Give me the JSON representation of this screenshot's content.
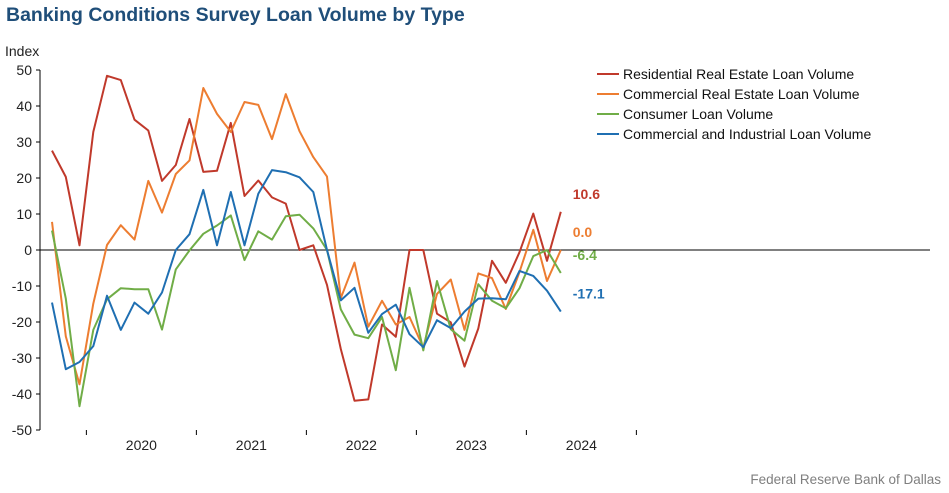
{
  "title": "Banking Conditions Survey Loan Volume by Type",
  "source": "Federal Reserve Bank of Dallas",
  "chart_data": {
    "type": "line",
    "ylabel": "Index",
    "xlabel": "",
    "ylim": [
      -50,
      50
    ],
    "yticks": [
      50,
      40,
      30,
      20,
      10,
      0,
      -10,
      -20,
      -30,
      -40,
      -50
    ],
    "x_tick_labels": [
      "2020",
      "2021",
      "2022",
      "2023",
      "2024"
    ],
    "legend_position": "top-right",
    "grid": false,
    "x_start_quarter_index": 0,
    "series": [
      {
        "name": "Residential Real Estate Loan Volume",
        "color": "#c0392b",
        "end_label": "10.6",
        "values": [
          27.6,
          20.3,
          1.3,
          32.8,
          48.4,
          47.2,
          36.2,
          33.2,
          19.2,
          23.6,
          36.4,
          21.7,
          22.0,
          35.3,
          15.0,
          19.3,
          14.6,
          12.9,
          0.0,
          1.3,
          -9.7,
          -27.5,
          -41.9,
          -41.5,
          -20.7,
          -24.1,
          0.0,
          0.0,
          -17.7,
          -20.1,
          -32.4,
          -21.8,
          -3.0,
          -9.1,
          -0.6,
          10.1,
          -3.0,
          10.6
        ]
      },
      {
        "name": "Commercial Real Estate Loan Volume",
        "color": "#ed7d31",
        "end_label": "0.0",
        "values": [
          7.8,
          -24.0,
          -37.3,
          -14.9,
          1.4,
          6.9,
          2.9,
          19.2,
          10.4,
          21.1,
          24.9,
          45.0,
          37.8,
          32.8,
          41.1,
          40.3,
          30.8,
          43.3,
          33.0,
          25.8,
          20.4,
          -13.4,
          -3.5,
          -21.3,
          -14.1,
          -20.7,
          -18.6,
          -27.1,
          -12.2,
          -8.2,
          -22.2,
          -6.5,
          -7.8,
          -16.4,
          -6.1,
          5.6,
          -8.6,
          0.0
        ]
      },
      {
        "name": "Consumer Loan Volume",
        "color": "#70ad47",
        "end_label": "-6.4",
        "values": [
          5.4,
          -13.5,
          -43.4,
          -22.2,
          -13.7,
          -10.6,
          -10.9,
          -10.9,
          -22.1,
          -5.4,
          -0.1,
          4.5,
          6.8,
          9.6,
          -2.8,
          5.2,
          2.9,
          9.4,
          9.8,
          6.0,
          0.0,
          -16.5,
          -23.5,
          -24.5,
          -18.6,
          -33.4,
          -10.5,
          -27.9,
          -8.6,
          -22.0,
          -25.2,
          -9.5,
          -14.1,
          -16.2,
          -10.6,
          -1.7,
          0.0,
          -6.4
        ]
      },
      {
        "name": "Commercial and Industrial Loan Volume",
        "color": "#1f6fb2",
        "end_label": "-17.1",
        "values": [
          -14.6,
          -33.1,
          -31.1,
          -26.7,
          -12.7,
          -22.2,
          -14.6,
          -17.7,
          -11.8,
          0.0,
          4.4,
          16.7,
          1.3,
          16.1,
          1.3,
          15.6,
          22.2,
          21.6,
          20.2,
          16.1,
          0.0,
          -14.0,
          -10.5,
          -23.0,
          -17.8,
          -15.2,
          -23.4,
          -27.0,
          -19.5,
          -21.7,
          -17.1,
          -13.5,
          -13.4,
          -13.7,
          -5.8,
          -7.2,
          -11.3,
          -17.1
        ]
      }
    ]
  }
}
